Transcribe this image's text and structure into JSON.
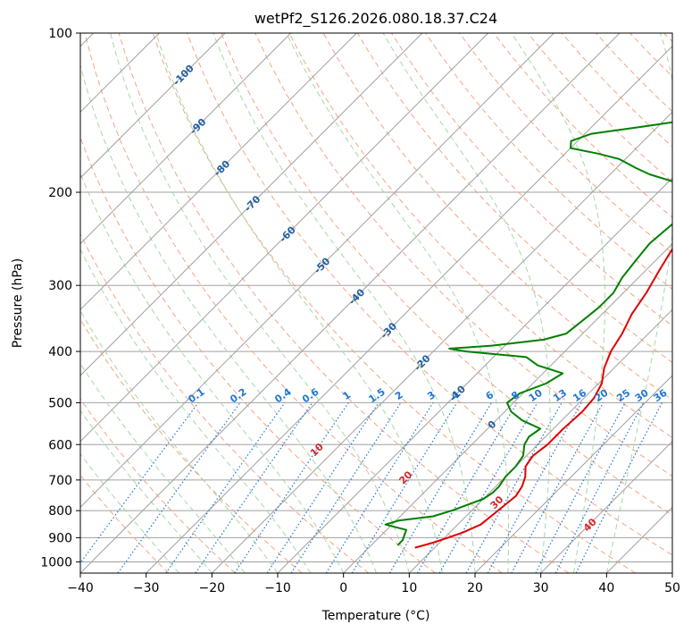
{
  "chart_data": {
    "type": "line",
    "title": "wetPf2_S126.2026.080.18.37.C24",
    "xlabel": "Temperature (°C)",
    "ylabel": "Pressure (hPa)",
    "xlim": [
      -40,
      50
    ],
    "ylim": [
      1050,
      100
    ],
    "x_ticks": [
      -40,
      -30,
      -20,
      -10,
      0,
      10,
      20,
      30,
      40,
      50
    ],
    "y_ticks": [
      100,
      200,
      300,
      400,
      500,
      600,
      700,
      800,
      900,
      1000
    ],
    "y_scale": "log",
    "skew": "45-degree isotherms",
    "colors": {
      "temperature": "#e00000",
      "dewpoint": "#008000",
      "isotherm": "#a0a0a0",
      "isobar": "#a0a0a0",
      "dry_adiabat": "#f4a582",
      "moist_adiabat": "#a6d8a6",
      "mixing_ratio": "#1f77d4",
      "isotherm_label": "#1f5f9f",
      "theta_label": "#d62728"
    },
    "isotherm_labels": [
      "-100",
      "-90",
      "-80",
      "-70",
      "-60",
      "-50",
      "-40",
      "-30",
      "-20",
      "-10",
      "0"
    ],
    "isotherm_label_values": [
      -100,
      -90,
      -80,
      -70,
      -60,
      -50,
      -40,
      -30,
      -20,
      -10,
      0
    ],
    "isotherm_label_pressures": [
      120,
      150,
      180,
      210,
      240,
      275,
      315,
      365,
      420,
      480,
      550
    ],
    "mixing_ratio_labels": [
      "0.1",
      "0.2",
      "0.4",
      "0.6",
      "1",
      "1.5",
      "2",
      "3",
      "4",
      "6",
      "8",
      "10",
      "13",
      "16",
      "20",
      "25",
      "30",
      "36"
    ],
    "mixing_ratio_values": [
      0.1,
      0.2,
      0.4,
      0.6,
      1,
      1.5,
      2,
      3,
      4,
      6,
      8,
      10,
      13,
      16,
      20,
      25,
      30,
      36
    ],
    "theta_labels": [
      "10",
      "20",
      "30",
      "40"
    ],
    "theta_label_values": [
      10,
      20,
      30,
      40
    ],
    "series": [
      {
        "name": "Temperature",
        "points": [
          [
            7.0,
            940
          ],
          [
            9.0,
            920
          ],
          [
            10.5,
            900
          ],
          [
            12.0,
            880
          ],
          [
            13.5,
            850
          ],
          [
            14.0,
            800
          ],
          [
            14.5,
            750
          ],
          [
            14.0,
            720
          ],
          [
            13.0,
            690
          ],
          [
            11.5,
            660
          ],
          [
            11.0,
            630
          ],
          [
            11.5,
            600
          ],
          [
            11.5,
            560
          ],
          [
            11.8,
            520
          ],
          [
            11.5,
            490
          ],
          [
            10.5,
            460
          ],
          [
            8.5,
            430
          ],
          [
            7.0,
            400
          ],
          [
            6.0,
            370
          ],
          [
            4.5,
            340
          ],
          [
            3.5,
            310
          ],
          [
            2.0,
            280
          ],
          [
            1.0,
            260
          ],
          [
            0.0,
            240
          ],
          [
            -1.0,
            225
          ],
          [
            -1.0,
            210
          ],
          [
            -0.5,
            200
          ],
          [
            1.0,
            190
          ],
          [
            2.5,
            185
          ],
          [
            5.0,
            180
          ],
          [
            9.0,
            175
          ],
          [
            12.0,
            168
          ],
          [
            14.0,
            160
          ],
          [
            15.0,
            150
          ],
          [
            15.5,
            140
          ],
          [
            16.0,
            130
          ],
          [
            16.0,
            120
          ],
          [
            17.0,
            112
          ],
          [
            19.0,
            105
          ],
          [
            21.0,
            100
          ]
        ]
      },
      {
        "name": "Dewpoint",
        "points": [
          [
            4.0,
            930
          ],
          [
            4.0,
            910
          ],
          [
            3.5,
            890
          ],
          [
            3.0,
            870
          ],
          [
            -1.0,
            850
          ],
          [
            0.5,
            835
          ],
          [
            5.0,
            820
          ],
          [
            7.0,
            800
          ],
          [
            8.5,
            780
          ],
          [
            10.0,
            760
          ],
          [
            10.5,
            740
          ],
          [
            10.5,
            720
          ],
          [
            10.0,
            690
          ],
          [
            10.0,
            660
          ],
          [
            9.5,
            630
          ],
          [
            8.0,
            600
          ],
          [
            7.5,
            580
          ],
          [
            8.0,
            560
          ],
          [
            4.0,
            540
          ],
          [
            1.0,
            520
          ],
          [
            -1.0,
            500
          ],
          [
            -0.5,
            480
          ],
          [
            2.0,
            460
          ],
          [
            3.0,
            440
          ],
          [
            -2.0,
            425
          ],
          [
            -5.0,
            410
          ],
          [
            -15.0,
            400
          ],
          [
            -18.0,
            395
          ],
          [
            -12.0,
            390
          ],
          [
            -5.0,
            380
          ],
          [
            -2.5,
            370
          ],
          [
            -2.0,
            350
          ],
          [
            -1.5,
            330
          ],
          [
            -1.5,
            310
          ],
          [
            -2.5,
            290
          ],
          [
            -3.0,
            270
          ],
          [
            -3.5,
            250
          ],
          [
            -3.0,
            230
          ],
          [
            -2.0,
            215
          ],
          [
            -3.0,
            205
          ],
          [
            -6.0,
            195
          ],
          [
            -10.0,
            190
          ],
          [
            -14.0,
            185
          ],
          [
            -17.0,
            180
          ],
          [
            -21.0,
            173
          ],
          [
            -25.0,
            169
          ],
          [
            -30.0,
            165
          ],
          [
            -31.0,
            160
          ],
          [
            -29.0,
            155
          ],
          [
            -22.0,
            150
          ],
          [
            -15.0,
            145
          ],
          [
            -9.0,
            140
          ],
          [
            -5.0,
            135
          ],
          [
            -2.0,
            130
          ],
          [
            1.0,
            120
          ],
          [
            3.5,
            110
          ],
          [
            5.0,
            105
          ],
          [
            6.5,
            100
          ]
        ]
      }
    ]
  }
}
